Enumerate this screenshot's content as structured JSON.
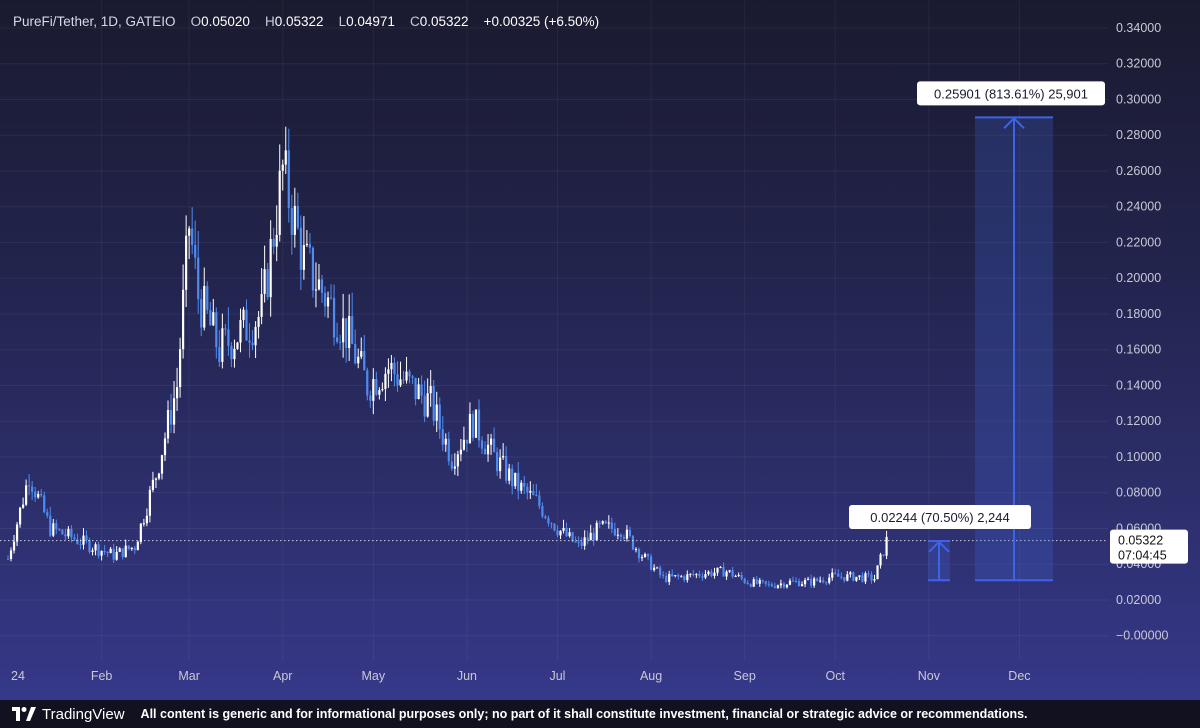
{
  "header": {
    "symbol": "PureFi/Tether, 1D, GATEIO",
    "o_label": "O",
    "o_value": "0.05020",
    "h_label": "H",
    "h_value": "0.05322",
    "l_label": "L",
    "l_value": "0.04971",
    "c_label": "C",
    "c_value": "0.05322",
    "change": "+0.00325 (+6.50%)"
  },
  "footer": {
    "brand": "TradingView",
    "disclaimer": "All content is generic and for informational purposes only; no part of it shall constitute investment, financial or strategic advice or recommendations."
  },
  "colors": {
    "up": "#ffffff",
    "down": "#4f8cf0",
    "measure": "#3e63e6"
  },
  "chart_data": {
    "type": "candlestick",
    "x_tick_labels": [
      "24",
      "Feb",
      "Mar",
      "Apr",
      "May",
      "Jun",
      "Jul",
      "Aug",
      "Sep",
      "Oct",
      "Nov",
      "Dec"
    ],
    "y_tick_labels": [
      "0.34000",
      "0.32000",
      "0.30000",
      "0.28000",
      "0.26000",
      "0.24000",
      "0.22000",
      "0.20000",
      "0.18000",
      "0.16000",
      "0.14000",
      "0.12000",
      "0.10000",
      "0.08000",
      "0.06000",
      "0.04000",
      "0.02000",
      "−0.00000"
    ],
    "ylim": [
      -0.008,
      0.345
    ],
    "close_series": [
      [
        "2024-01-01",
        0.043
      ],
      [
        "2024-01-08",
        0.09
      ],
      [
        "2024-01-15",
        0.06
      ],
      [
        "2024-01-22",
        0.055
      ],
      [
        "2024-01-29",
        0.05
      ],
      [
        "2024-02-05",
        0.045
      ],
      [
        "2024-02-12",
        0.05
      ],
      [
        "2024-02-19",
        0.09
      ],
      [
        "2024-02-26",
        0.14
      ],
      [
        "2024-03-01",
        0.23
      ],
      [
        "2024-03-04",
        0.19
      ],
      [
        "2024-03-11",
        0.16
      ],
      [
        "2024-03-18",
        0.17
      ],
      [
        "2024-03-25",
        0.18
      ],
      [
        "2024-04-01",
        0.26
      ],
      [
        "2024-04-08",
        0.21
      ],
      [
        "2024-04-15",
        0.19
      ],
      [
        "2024-04-22",
        0.17
      ],
      [
        "2024-04-29",
        0.14
      ],
      [
        "2024-05-06",
        0.15
      ],
      [
        "2024-05-13",
        0.14
      ],
      [
        "2024-05-20",
        0.13
      ],
      [
        "2024-05-27",
        0.1
      ],
      [
        "2024-06-03",
        0.12
      ],
      [
        "2024-06-10",
        0.1
      ],
      [
        "2024-06-17",
        0.085
      ],
      [
        "2024-06-24",
        0.075
      ],
      [
        "2024-07-01",
        0.06
      ],
      [
        "2024-07-08",
        0.05
      ],
      [
        "2024-07-15",
        0.06
      ],
      [
        "2024-07-22",
        0.06
      ],
      [
        "2024-07-29",
        0.045
      ],
      [
        "2024-08-05",
        0.032
      ],
      [
        "2024-08-12",
        0.033
      ],
      [
        "2024-08-19",
        0.035
      ],
      [
        "2024-08-26",
        0.036
      ],
      [
        "2024-09-02",
        0.03
      ],
      [
        "2024-09-09",
        0.028
      ],
      [
        "2024-09-16",
        0.03
      ],
      [
        "2024-09-23",
        0.03
      ],
      [
        "2024-09-30",
        0.033
      ],
      [
        "2024-10-07",
        0.033
      ],
      [
        "2024-10-14",
        0.032
      ],
      [
        "2024-10-18",
        0.053
      ]
    ],
    "last_price": "0.05322",
    "countdown": "07:04:45",
    "measure_small": {
      "label": "0.02244 (70.50%) 2,244",
      "from": 0.031,
      "to": 0.053
    },
    "measure_large": {
      "label": "0.25901 (813.61%) 25,901",
      "from": 0.031,
      "to": 0.29
    }
  }
}
